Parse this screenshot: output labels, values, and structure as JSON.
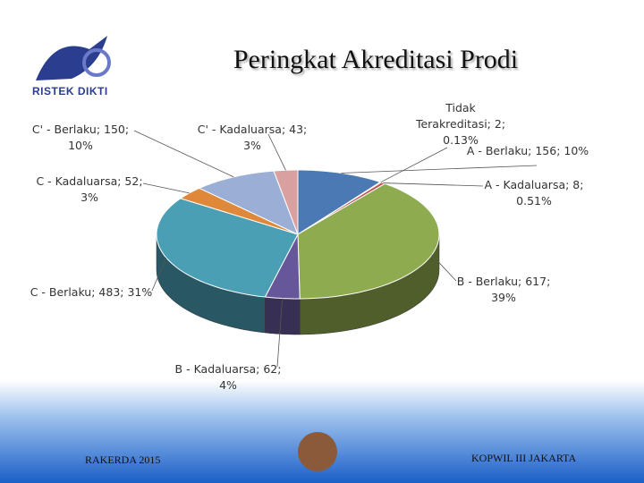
{
  "slide": {
    "logo_text": "RISTEK DIKTI",
    "footer_left": "RAKERDA 2015",
    "footer_right": "KOPWIL III JAKARTA"
  },
  "chart_data": {
    "type": "pie",
    "title": "Peringkat Akreditasi Prodi",
    "labels": [
      "A - Berlaku; 156; 10%",
      "Tidak Terakreditasi; 2; 0.13%",
      "A - Kadaluarsa; 8; 0.51%",
      "B - Berlaku; 617; 39%",
      "B - Kadaluarsa; 62; 4%",
      "C - Berlaku; 483; 31%",
      "C - Kadaluarsa; 52; 3%",
      "C' - Berlaku; 150; 10%",
      "C' - Kadaluarsa; 43; 3%"
    ],
    "values": [
      156,
      2,
      8,
      617,
      62,
      483,
      52,
      150,
      43
    ],
    "colors": [
      "#4a79b3",
      "#7a2f2f",
      "#c0504d",
      "#8fab4f",
      "#66569a",
      "#4a9fb5",
      "#e0883a",
      "#9aaed6",
      "#d9a0a0"
    ]
  }
}
